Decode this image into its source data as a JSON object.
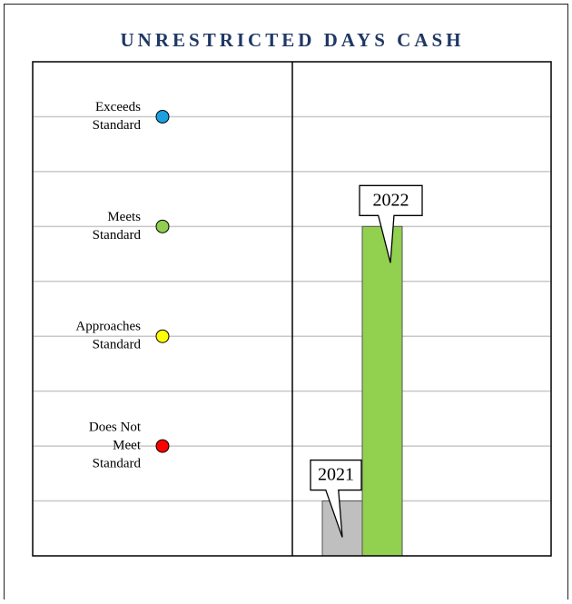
{
  "chart_data": {
    "type": "bar",
    "title": "UNRESTRICTED DAYS CASH",
    "categories": [
      "2021",
      "2022"
    ],
    "values": [
      1,
      6
    ],
    "colors": [
      "#bfbfbf",
      "#92d050"
    ],
    "ylim": [
      0,
      9
    ],
    "yticks": [
      1,
      2,
      3,
      4,
      5,
      6,
      7,
      8
    ],
    "grid": true,
    "levels": [
      {
        "label": [
          "Exceeds",
          "Standard"
        ],
        "value": 8,
        "color": "#1ba1e2"
      },
      {
        "label": [
          "Meets",
          "Standard"
        ],
        "value": 6,
        "color": "#8fce4f"
      },
      {
        "label": [
          "Approaches",
          "Standard"
        ],
        "value": 4,
        "color": "#ffff00"
      },
      {
        "label": [
          "Does Not",
          "Meet",
          "Standard"
        ],
        "value": 2,
        "color": "#ff0000"
      }
    ]
  }
}
